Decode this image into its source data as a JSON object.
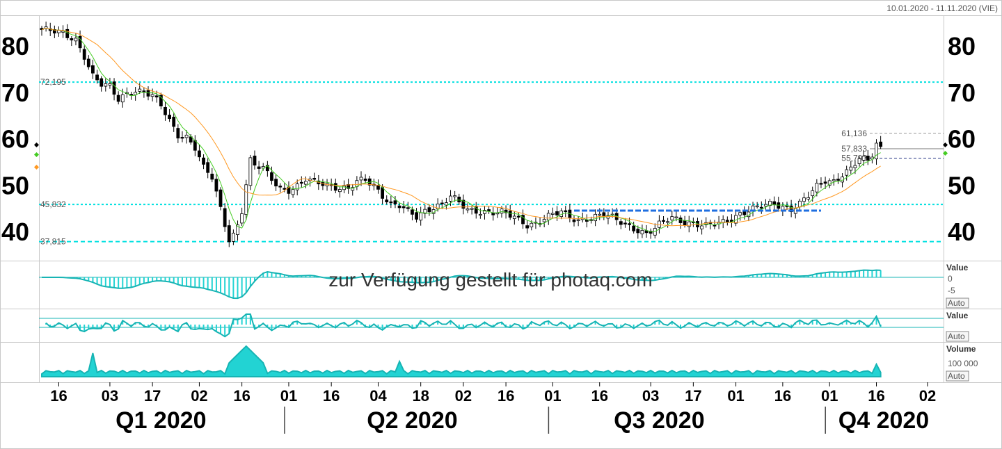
{
  "header": {
    "date_range": "10.01.2020 - 11.11.2020 (VIE)"
  },
  "watermark": "zur Verfügung gestellt für photaq.com",
  "colors": {
    "up_candle": "#ffffff",
    "down_candle": "#000000",
    "ma_short": "#44cc22",
    "ma_long": "#ff9922",
    "level_line": "#00e0e0",
    "trend_line": "#1f6fe0",
    "indicator_fill": "#22d3d3",
    "indicator_line": "#17b4b4"
  },
  "chart_data": [
    {
      "type": "candlestick",
      "name": "price",
      "ylim": [
        35,
        85
      ],
      "yticks": [
        "80",
        "70",
        "60",
        "50",
        "40"
      ],
      "ytick_values": [
        80,
        70,
        60,
        50,
        40
      ],
      "levels": [
        {
          "label": "72,195",
          "value": 72.195,
          "side": "left",
          "style": "dotted"
        },
        {
          "label": "45,832",
          "value": 45.832,
          "side": "left",
          "style": "dotted"
        },
        {
          "label": "37,815",
          "value": 37.815,
          "side": "left",
          "style": "dashed"
        },
        {
          "label": "61,136",
          "value": 61.136,
          "side": "right",
          "style": "dashed-gray"
        },
        {
          "label": "57,833",
          "value": 57.833,
          "side": "right",
          "style": "solid-gray"
        },
        {
          "label": "55,792",
          "value": 55.792,
          "side": "right",
          "style": "dashed-navy"
        }
      ],
      "trendline": {
        "from_index": 125,
        "to_index": 183,
        "value": 44.5
      },
      "x_ticks": [
        {
          "label": "16",
          "index": 4
        },
        {
          "label": "03",
          "index": 16
        },
        {
          "label": "17",
          "index": 26
        },
        {
          "label": "02",
          "index": 37
        },
        {
          "label": "16",
          "index": 47
        },
        {
          "label": "01",
          "index": 58
        },
        {
          "label": "16",
          "index": 68
        },
        {
          "label": "04",
          "index": 79
        },
        {
          "label": "18",
          "index": 89
        },
        {
          "label": "02",
          "index": 99
        },
        {
          "label": "16",
          "index": 109
        },
        {
          "label": "01",
          "index": 120
        },
        {
          "label": "16",
          "index": 131
        },
        {
          "label": "03",
          "index": 143
        },
        {
          "label": "17",
          "index": 153
        },
        {
          "label": "01",
          "index": 163
        },
        {
          "label": "16",
          "index": 174
        },
        {
          "label": "01",
          "index": 185
        },
        {
          "label": "16",
          "index": 196
        },
        {
          "label": "02",
          "index": 208
        }
      ],
      "quarters": [
        {
          "label": "Q1 2020",
          "index": 28
        },
        {
          "label": "Q2 2020",
          "index": 87
        },
        {
          "label": "Q3 2020",
          "index": 145
        },
        {
          "label": "Q4 2020",
          "index": 204
        }
      ],
      "quarter_separators": [
        58,
        120,
        185
      ],
      "close_anchors": [
        [
          0,
          83.5
        ],
        [
          5,
          82.5
        ],
        [
          8,
          81.5
        ],
        [
          10,
          78
        ],
        [
          12,
          73.5
        ],
        [
          14,
          71.5
        ],
        [
          16,
          71
        ],
        [
          18,
          68.5
        ],
        [
          20,
          70
        ],
        [
          22,
          70.5
        ],
        [
          24,
          70
        ],
        [
          26,
          69
        ],
        [
          28,
          67
        ],
        [
          30,
          64
        ],
        [
          32,
          61
        ],
        [
          34,
          60.5
        ],
        [
          36,
          58
        ],
        [
          38,
          53.5
        ],
        [
          40,
          51.5
        ],
        [
          42,
          45
        ],
        [
          44,
          38.5
        ],
        [
          45,
          39.5
        ],
        [
          46,
          41.5
        ],
        [
          47,
          44.5
        ],
        [
          48,
          50
        ],
        [
          49,
          55
        ],
        [
          50,
          54
        ],
        [
          52,
          53.5
        ],
        [
          54,
          51.5
        ],
        [
          56,
          49.5
        ],
        [
          58,
          49
        ],
        [
          60,
          49.5
        ],
        [
          62,
          51
        ],
        [
          64,
          50.5
        ],
        [
          66,
          50.5
        ],
        [
          70,
          49.5
        ],
        [
          72,
          49
        ],
        [
          74,
          50.5
        ],
        [
          76,
          51
        ],
        [
          78,
          50
        ],
        [
          80,
          48
        ],
        [
          82,
          46
        ],
        [
          84,
          45.5
        ],
        [
          86,
          44
        ],
        [
          88,
          43
        ],
        [
          90,
          44.5
        ],
        [
          92,
          45.5
        ],
        [
          94,
          46
        ],
        [
          96,
          47.5
        ],
        [
          98,
          46
        ],
        [
          100,
          44.5
        ],
        [
          104,
          44.5
        ],
        [
          108,
          44
        ],
        [
          112,
          42.5
        ],
        [
          114,
          41.5
        ],
        [
          116,
          42
        ],
        [
          118,
          43
        ],
        [
          120,
          43.5
        ],
        [
          122,
          44
        ],
        [
          124,
          43
        ],
        [
          126,
          42.5
        ],
        [
          128,
          43
        ],
        [
          132,
          43.5
        ],
        [
          136,
          42
        ],
        [
          140,
          40.5
        ],
        [
          142,
          39.5
        ],
        [
          144,
          40.5
        ],
        [
          146,
          42
        ],
        [
          148,
          43
        ],
        [
          150,
          42.5
        ],
        [
          152,
          42
        ],
        [
          156,
          41
        ],
        [
          160,
          42
        ],
        [
          162,
          43
        ],
        [
          164,
          44
        ],
        [
          168,
          45
        ],
        [
          170,
          45.5
        ],
        [
          172,
          46
        ],
        [
          174,
          45.5
        ],
        [
          176,
          45
        ],
        [
          178,
          46
        ],
        [
          180,
          47.5
        ],
        [
          182,
          49.5
        ],
        [
          184,
          51
        ],
        [
          186,
          51
        ],
        [
          188,
          52.5
        ],
        [
          190,
          53.5
        ],
        [
          192,
          55.5
        ],
        [
          194,
          55
        ],
        [
          195,
          56.5
        ],
        [
          196,
          59
        ],
        [
          197,
          58
        ]
      ]
    },
    {
      "type": "histogram",
      "name": "indicator-1",
      "label": "Value",
      "yticks": [
        "0",
        "-5"
      ],
      "button": "Auto"
    },
    {
      "type": "histogram",
      "name": "indicator-2",
      "label": "Value",
      "button": "Auto"
    },
    {
      "type": "area",
      "name": "volume",
      "label": "Volume",
      "yticks": [
        "100 000"
      ],
      "button": "Auto"
    }
  ]
}
